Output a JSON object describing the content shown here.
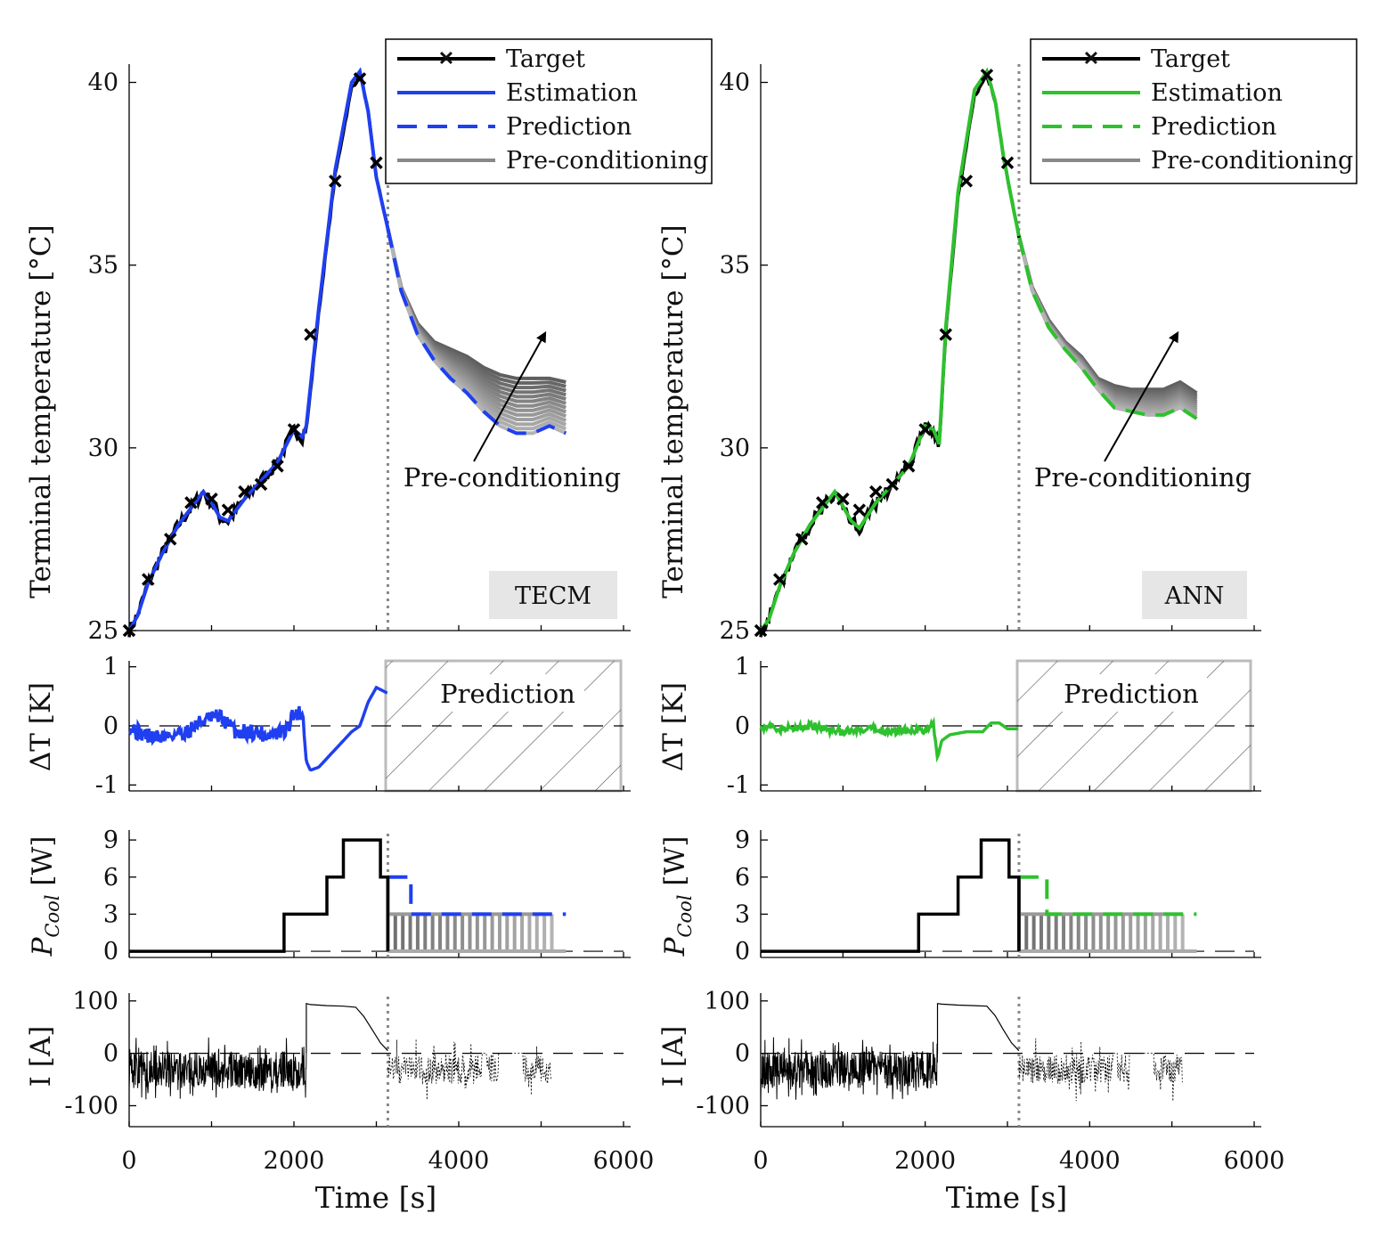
{
  "chart_data": [
    {
      "type": "line",
      "model": "TECM",
      "model_label": "TECM",
      "color": "#1f3ff0",
      "x_label": "Time [s]",
      "x_ticks": [
        "0",
        "2000",
        "4000",
        "6000"
      ],
      "xlim": [
        0,
        6000
      ],
      "legend": [
        "Target",
        "Estimation",
        "Prediction",
        "Pre-conditioning"
      ],
      "annotation": "Pre-conditioning",
      "prediction_label": "Prediction",
      "prediction_start": 3140,
      "temperature": {
        "ylabel": "Terminal temperature [°C]",
        "yticks": [
          "25",
          "30",
          "35",
          "40"
        ],
        "ylim": [
          25,
          40.5
        ],
        "target_x": [
          0,
          230,
          500,
          750,
          1000,
          1200,
          1400,
          1600,
          1800,
          2000,
          2200,
          2500,
          2800,
          3000
        ],
        "target_y": [
          25.0,
          26.4,
          27.5,
          28.5,
          28.6,
          28.3,
          28.8,
          29.0,
          29.5,
          30.5,
          33.1,
          37.3,
          40.1,
          37.8
        ],
        "estimation_x": [
          0,
          100,
          230,
          400,
          600,
          800,
          900,
          1000,
          1100,
          1200,
          1400,
          1600,
          1800,
          2000,
          2100,
          2150,
          2300,
          2500,
          2700,
          2800,
          2900,
          3000,
          3140
        ],
        "estimation_y": [
          25.0,
          25.4,
          26.3,
          27.1,
          27.9,
          28.5,
          28.8,
          28.5,
          28.1,
          28.0,
          28.6,
          29.1,
          29.6,
          30.5,
          30.3,
          30.6,
          33.8,
          37.6,
          40.0,
          40.3,
          39.2,
          37.4,
          36.0
        ],
        "prediction_x": [
          3140,
          3300,
          3500,
          3700,
          3900,
          4100,
          4300,
          4500,
          4700,
          4900,
          5100,
          5300
        ],
        "prediction_y": [
          36.0,
          34.3,
          33.1,
          32.4,
          31.9,
          31.5,
          31.0,
          30.6,
          30.4,
          30.4,
          30.6,
          30.4
        ],
        "precond_top_y": [
          36.0,
          34.4,
          33.4,
          32.9,
          32.7,
          32.5,
          32.2,
          32.0,
          31.9,
          31.9,
          31.9,
          31.8
        ]
      },
      "delta": {
        "ylabel": "ΔT [K]",
        "yticks": [
          "-1",
          "0",
          "1"
        ],
        "ylim": [
          -1.1,
          1.1
        ],
        "x": [
          0,
          100,
          300,
          500,
          700,
          900,
          1100,
          1300,
          1500,
          1700,
          1900,
          2000,
          2100,
          2150,
          2200,
          2300,
          2500,
          2700,
          2800,
          2900,
          3000,
          3140
        ],
        "y": [
          0.0,
          -0.1,
          -0.2,
          -0.15,
          -0.1,
          0.1,
          0.15,
          -0.1,
          -0.1,
          -0.15,
          -0.1,
          0.2,
          0.25,
          -0.6,
          -0.75,
          -0.7,
          -0.4,
          -0.1,
          0.0,
          0.4,
          0.65,
          0.55
        ]
      },
      "cooling": {
        "ylabel": "P_Cool [W]",
        "yticks": [
          "0",
          "3",
          "6",
          "9"
        ],
        "ylim": [
          -0.5,
          9.8
        ],
        "step_x": [
          0,
          1880,
          2400,
          2600,
          3050,
          3140
        ],
        "step_y": [
          0,
          3,
          6,
          9,
          6,
          6
        ],
        "prediction_step_x": [
          3140,
          3420,
          5300
        ],
        "prediction_step_y": [
          6,
          3,
          3
        ],
        "precond_ends": [
          3140,
          5130
        ]
      },
      "current": {
        "ylabel": "I [A]",
        "yticks": [
          "-100",
          "0",
          "100"
        ],
        "ylim": [
          -140,
          115
        ],
        "load_end": 2150,
        "hold_x": [
          2150,
          2200,
          2400,
          2600,
          2750,
          2850,
          2950,
          3050,
          3140
        ],
        "hold_y": [
          95,
          93,
          91,
          90,
          88,
          70,
          45,
          20,
          5
        ],
        "precond_end": 5130
      }
    },
    {
      "type": "line",
      "model": "ANN",
      "model_label": "ANN",
      "color": "#2ec12e",
      "x_label": "Time [s]",
      "x_ticks": [
        "0",
        "2000",
        "4000",
        "6000"
      ],
      "xlim": [
        0,
        6000
      ],
      "legend": [
        "Target",
        "Estimation",
        "Prediction",
        "Pre-conditioning"
      ],
      "annotation": "Pre-conditioning",
      "prediction_label": "Prediction",
      "prediction_start": 3140,
      "temperature": {
        "ylabel": "Terminal temperature [°C]",
        "yticks": [
          "25",
          "30",
          "35",
          "40"
        ],
        "ylim": [
          25,
          40.5
        ],
        "target_x": [
          0,
          230,
          500,
          750,
          1000,
          1200,
          1400,
          1600,
          1800,
          2000,
          2250,
          2500,
          2750,
          3000
        ],
        "target_y": [
          25.0,
          26.4,
          27.5,
          28.5,
          28.6,
          28.3,
          28.8,
          29.0,
          29.5,
          30.5,
          33.1,
          37.3,
          40.2,
          37.8
        ],
        "estimation_x": [
          0,
          100,
          230,
          400,
          600,
          800,
          900,
          1000,
          1100,
          1200,
          1400,
          1600,
          1800,
          2000,
          2100,
          2170,
          2250,
          2400,
          2600,
          2750,
          2850,
          2950,
          3050,
          3140
        ],
        "estimation_y": [
          25.0,
          25.3,
          26.2,
          27.1,
          27.9,
          28.5,
          28.8,
          28.4,
          28.0,
          27.8,
          28.5,
          29.0,
          29.5,
          30.6,
          30.5,
          30.1,
          33.3,
          37.0,
          39.8,
          40.3,
          39.5,
          38.0,
          36.8,
          35.8
        ],
        "prediction_x": [
          3140,
          3300,
          3500,
          3700,
          3900,
          4100,
          4300,
          4500,
          4700,
          4900,
          5100,
          5300
        ],
        "prediction_y": [
          35.8,
          34.3,
          33.3,
          32.7,
          32.2,
          31.6,
          31.1,
          31.0,
          30.9,
          30.9,
          31.1,
          30.8
        ],
        "precond_top_y": [
          35.8,
          34.4,
          33.5,
          32.9,
          32.5,
          31.9,
          31.7,
          31.6,
          31.6,
          31.6,
          31.8,
          31.5
        ]
      },
      "delta": {
        "ylabel": "ΔT [K]",
        "yticks": [
          "-1",
          "0",
          "1"
        ],
        "ylim": [
          -1.1,
          1.1
        ],
        "x": [
          0,
          200,
          400,
          600,
          800,
          1000,
          1200,
          1400,
          1600,
          1800,
          2000,
          2100,
          2150,
          2200,
          2300,
          2500,
          2700,
          2800,
          2900,
          3000,
          3140
        ],
        "y": [
          0.0,
          -0.05,
          -0.05,
          0.0,
          -0.05,
          -0.1,
          -0.1,
          -0.05,
          -0.1,
          -0.05,
          -0.1,
          0.05,
          -0.55,
          -0.25,
          -0.15,
          -0.1,
          -0.1,
          0.05,
          0.05,
          -0.05,
          -0.05
        ]
      },
      "cooling": {
        "ylabel": "P_Cool [W]",
        "yticks": [
          "0",
          "3",
          "6",
          "9"
        ],
        "ylim": [
          -0.5,
          9.8
        ],
        "step_x": [
          0,
          1920,
          2400,
          2680,
          3020,
          3140
        ],
        "step_y": [
          0,
          3,
          6,
          9,
          6,
          6
        ],
        "prediction_step_x": [
          3140,
          3480,
          5300
        ],
        "prediction_step_y": [
          6,
          3,
          3
        ],
        "precond_ends": [
          3140,
          5130
        ]
      },
      "current": {
        "ylabel": "I [A]",
        "yticks": [
          "-100",
          "0",
          "100"
        ],
        "ylim": [
          -140,
          115
        ],
        "load_end": 2150,
        "hold_x": [
          2150,
          2200,
          2400,
          2600,
          2750,
          2850,
          2950,
          3050,
          3140
        ],
        "hold_y": [
          95,
          94,
          92,
          91,
          90,
          72,
          45,
          20,
          5
        ],
        "precond_end": 5130
      }
    }
  ]
}
